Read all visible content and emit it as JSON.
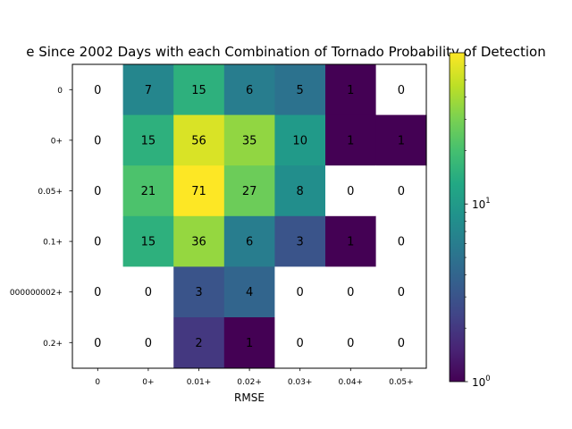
{
  "chart_data": {
    "type": "heatmap",
    "title": "e Since 2002 Days with each Combination of Tornado Probability of Detection",
    "xlabel": "RMSE",
    "ylabel": "",
    "x_categories": [
      "0",
      "0+",
      "0.01+",
      "0.02+",
      "0.03+",
      "0.04+",
      "0.05+"
    ],
    "y_categories": [
      "0",
      "0+",
      "0.05+",
      "0.1+",
      "000000002+",
      "0.2+"
    ],
    "values": [
      [
        0,
        7,
        15,
        6,
        5,
        1,
        0
      ],
      [
        0,
        15,
        56,
        35,
        10,
        1,
        1
      ],
      [
        0,
        21,
        71,
        27,
        8,
        0,
        0
      ],
      [
        0,
        15,
        36,
        6,
        3,
        1,
        0
      ],
      [
        0,
        0,
        3,
        4,
        0,
        0,
        0
      ],
      [
        0,
        0,
        2,
        1,
        0,
        0,
        0
      ]
    ],
    "color_scale": "log",
    "colormap": "viridis",
    "zero_color": "#ffffff",
    "vmin": 1,
    "vmax": 71,
    "colorbar_ticks": [
      {
        "value": 1,
        "base": "10",
        "exp": "0"
      },
      {
        "value": 10,
        "base": "10",
        "exp": "1"
      }
    ],
    "grid": false
  }
}
